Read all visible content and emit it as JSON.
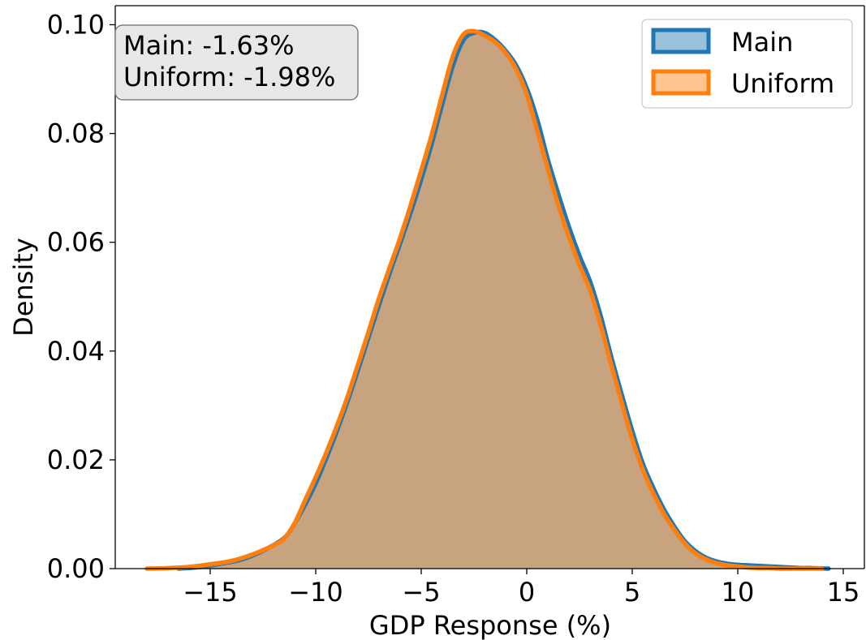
{
  "chart_data": {
    "type": "area",
    "xlabel": "GDP Response (%)",
    "ylabel": "Density",
    "xlim": [
      -19.5,
      16
    ],
    "ylim": [
      0,
      0.1035
    ],
    "x_ticks": [
      -15,
      -10,
      -5,
      0,
      5,
      10,
      15
    ],
    "x_tick_labels": [
      "−15",
      "−10",
      "−5",
      "0",
      "5",
      "10",
      "15"
    ],
    "y_ticks": [
      0.0,
      0.02,
      0.04,
      0.06,
      0.08,
      0.1
    ],
    "y_tick_labels": [
      "0.00",
      "0.02",
      "0.04",
      "0.06",
      "0.08",
      "0.10"
    ],
    "grid": false,
    "legend_position": "top-right",
    "annotation": {
      "lines": [
        "Main: -1.63%",
        "Uniform: -1.98%"
      ]
    },
    "series": [
      {
        "name": "Main",
        "color": "#1f77b4",
        "fill_color": "#1f77b4",
        "fill_opacity": 0.45,
        "x": [
          -16.5,
          -15.5,
          -14.5,
          -13.5,
          -12.5,
          -11.5,
          -11.0,
          -10.5,
          -10.0,
          -9.5,
          -9.0,
          -8.5,
          -8.0,
          -7.5,
          -7.0,
          -6.5,
          -6.0,
          -5.5,
          -5.0,
          -4.5,
          -4.0,
          -3.5,
          -3.0,
          -2.5,
          -2.0,
          -1.5,
          -1.0,
          -0.5,
          0.0,
          0.5,
          1.0,
          1.5,
          2.0,
          2.5,
          3.0,
          3.5,
          4.0,
          4.5,
          5.0,
          5.5,
          6.0,
          6.5,
          7.0,
          7.5,
          8.0,
          8.5,
          9.0,
          9.5,
          10.0,
          10.5,
          11.0,
          11.5,
          12.0,
          12.5,
          13.0,
          13.5,
          14.3
        ],
        "y": [
          0.0,
          0.0003,
          0.0009,
          0.0017,
          0.0033,
          0.0056,
          0.0083,
          0.0118,
          0.0157,
          0.0203,
          0.0253,
          0.0307,
          0.0365,
          0.0425,
          0.0485,
          0.0543,
          0.0598,
          0.0655,
          0.0716,
          0.0782,
          0.0855,
          0.0925,
          0.0972,
          0.0985,
          0.0985,
          0.0972,
          0.0952,
          0.0925,
          0.0883,
          0.0825,
          0.0752,
          0.0688,
          0.0628,
          0.0575,
          0.0528,
          0.0465,
          0.039,
          0.032,
          0.0253,
          0.0193,
          0.0148,
          0.0109,
          0.0077,
          0.005,
          0.0032,
          0.002,
          0.0013,
          0.0009,
          0.0007,
          0.0006,
          0.0005,
          0.0004,
          0.0003,
          0.0002,
          0.0001,
          0.0001,
          0.0
        ]
      },
      {
        "name": "Uniform",
        "color": "#ff7f0e",
        "fill_color": "#ff7f0e",
        "fill_opacity": 0.45,
        "x": [
          -18.0,
          -17.0,
          -16.0,
          -15.0,
          -14.0,
          -13.0,
          -12.0,
          -11.5,
          -11.0,
          -10.5,
          -10.0,
          -9.5,
          -9.0,
          -8.5,
          -8.0,
          -7.5,
          -7.0,
          -6.5,
          -6.0,
          -5.5,
          -5.0,
          -4.5,
          -4.0,
          -3.5,
          -3.0,
          -2.5,
          -2.0,
          -1.5,
          -1.0,
          -0.5,
          0.0,
          0.5,
          1.0,
          1.5,
          2.0,
          2.5,
          3.0,
          3.5,
          4.0,
          4.5,
          5.0,
          5.5,
          6.0,
          6.5,
          7.0,
          7.5,
          8.0,
          8.5,
          9.0,
          9.5,
          10.0,
          10.5,
          11.0,
          11.5,
          12.0,
          13.0,
          14.0
        ],
        "y": [
          0.0,
          0.0001,
          0.0003,
          0.0008,
          0.0014,
          0.0026,
          0.0043,
          0.0055,
          0.0083,
          0.0126,
          0.0168,
          0.0213,
          0.0262,
          0.0315,
          0.0375,
          0.0435,
          0.0497,
          0.0553,
          0.0608,
          0.0668,
          0.0732,
          0.0798,
          0.0872,
          0.0942,
          0.0982,
          0.0988,
          0.098,
          0.0968,
          0.0948,
          0.0918,
          0.0872,
          0.0805,
          0.0735,
          0.0668,
          0.061,
          0.0558,
          0.0512,
          0.0448,
          0.0375,
          0.0305,
          0.0238,
          0.0182,
          0.0138,
          0.0101,
          0.0071,
          0.0046,
          0.0028,
          0.0017,
          0.001,
          0.0006,
          0.0004,
          0.0002,
          0.0001,
          0.0001,
          0.0,
          0.0,
          0.0
        ]
      }
    ]
  }
}
